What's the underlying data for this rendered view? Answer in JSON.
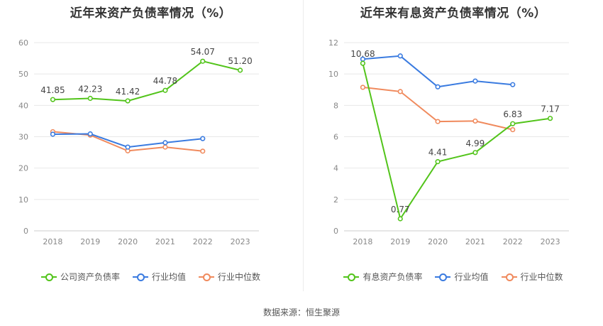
{
  "chart_data": [
    {
      "type": "line",
      "title": "近年来资产负债率情况（%）",
      "categories": [
        "2018",
        "2019",
        "2020",
        "2021",
        "2022",
        "2023"
      ],
      "ylim": [
        0,
        60
      ],
      "yticks": [
        0,
        10,
        20,
        30,
        40,
        50,
        60
      ],
      "grid": true,
      "legend_position": "bottom",
      "series": [
        {
          "name": "公司资产负债率",
          "color": "#52c41a",
          "values": [
            41.85,
            42.23,
            41.42,
            44.78,
            54.07,
            51.2
          ],
          "labels": [
            "41.85",
            "42.23",
            "41.42",
            "44.78",
            "54.07",
            "51.20"
          ]
        },
        {
          "name": "行业均值",
          "color": "#3a7be0",
          "values": [
            30.8,
            30.9,
            26.7,
            28.1,
            29.4,
            null
          ]
        },
        {
          "name": "行业中位数",
          "color": "#f08a5d",
          "values": [
            31.6,
            30.5,
            25.5,
            26.7,
            25.4,
            null
          ]
        }
      ]
    },
    {
      "type": "line",
      "title": "近年来有息资产负债率情况（%）",
      "categories": [
        "2018",
        "2019",
        "2020",
        "2021",
        "2022",
        "2023"
      ],
      "ylim": [
        0,
        12
      ],
      "yticks": [
        0,
        2,
        4,
        6,
        8,
        10,
        12
      ],
      "grid": true,
      "legend_position": "bottom",
      "series": [
        {
          "name": "有息资产负债率",
          "color": "#52c41a",
          "values": [
            10.68,
            0.77,
            4.41,
            4.99,
            6.83,
            7.17
          ],
          "labels": [
            "10.68",
            "0.77",
            "4.41",
            "4.99",
            "6.83",
            "7.17"
          ]
        },
        {
          "name": "行业均值",
          "color": "#3a7be0",
          "values": [
            10.95,
            11.15,
            9.18,
            9.55,
            9.32,
            null
          ]
        },
        {
          "name": "行业中位数",
          "color": "#f08a5d",
          "values": [
            9.15,
            8.88,
            6.97,
            7.0,
            6.45,
            null
          ]
        }
      ]
    }
  ],
  "footer": {
    "source": "数据来源：恒生聚源"
  }
}
